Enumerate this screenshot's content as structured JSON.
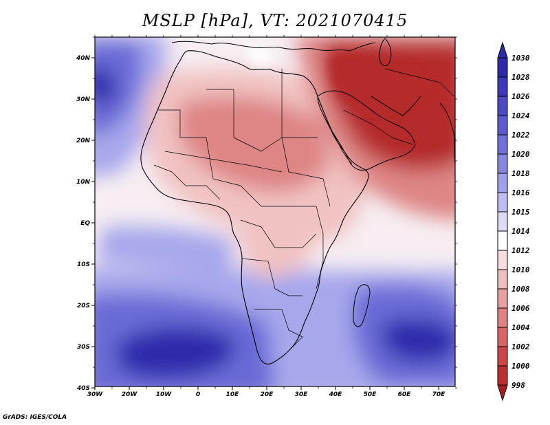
{
  "title": "MSLP [hPa], VT: 2021070415",
  "footer": "GrADS: IGES/COLA",
  "map": {
    "lat_ticks": [
      "40N",
      "30N",
      "20N",
      "10N",
      "EQ",
      "10S",
      "20S",
      "30S",
      "40S"
    ],
    "lon_ticks": [
      "30W",
      "20W",
      "10W",
      "0",
      "10E",
      "20E",
      "30E",
      "40E",
      "50E",
      "60E",
      "70E"
    ]
  },
  "colorbar": {
    "levels": [
      "1030",
      "1028",
      "1026",
      "1024",
      "1022",
      "1020",
      "1018",
      "1016",
      "1015",
      "1014",
      "1012",
      "1010",
      "1008",
      "1006",
      "1004",
      "1002",
      "1000",
      "998"
    ],
    "colors": [
      "#2b2aa8",
      "#3a3ab8",
      "#4a4ac4",
      "#5c5ccf",
      "#7070d8",
      "#8686e0",
      "#a0a0ea",
      "#bebef2",
      "#dcdcf8",
      "#ffffff",
      "#f8dede",
      "#f0bebe",
      "#e8a0a0",
      "#e08282",
      "#d86464",
      "#cc4646",
      "#bd2e2e",
      "#a81f1f"
    ]
  },
  "field_colors": {
    "deep_high": "#2d2cab",
    "high": "#6b6bd6",
    "mid_high": "#a7a7ec",
    "neutral": "#f6eef2",
    "mid_low": "#f1c2c2",
    "low": "#de8585",
    "deep_low": "#b52a2a",
    "coast": "#000000"
  }
}
